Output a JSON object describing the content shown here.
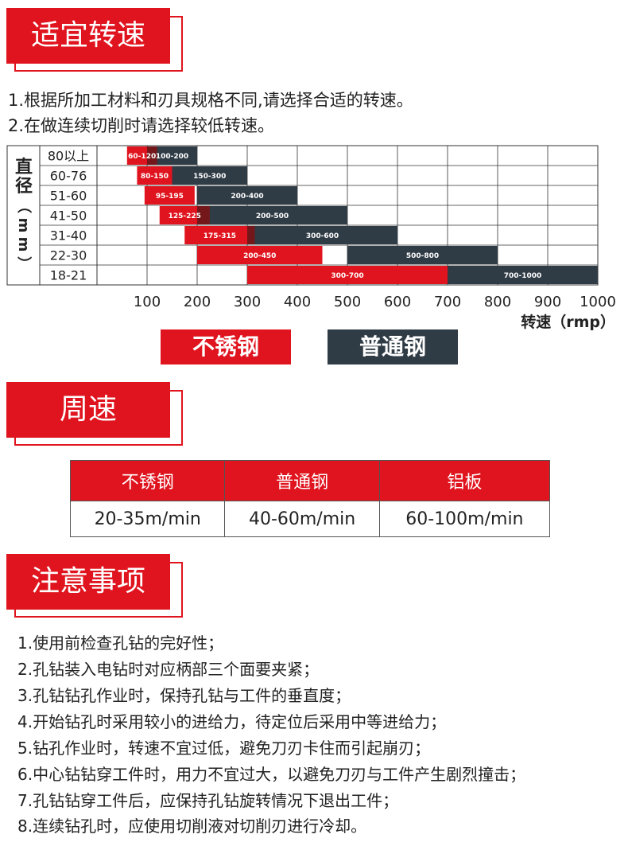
{
  "section1": {
    "title": "适宜转速"
  },
  "intro_notes": [
    "1.根据所加工材料和刃具规格不同,请选择合适的转速。",
    "2.在做连续切削时请选择较低转速。"
  ],
  "chart_data": {
    "type": "range-bar",
    "ylabel": "直径（mm）",
    "xlabel": "转速（rmp）",
    "xticks": [
      100,
      200,
      300,
      400,
      500,
      600,
      700,
      800,
      900,
      1000
    ],
    "xlim": [
      0,
      1000
    ],
    "categories": [
      "80以上",
      "60-76",
      "51-60",
      "41-50",
      "31-40",
      "22-30",
      "18-21"
    ],
    "series": [
      {
        "name": "不锈钢",
        "color": "#e0141e",
        "ranges": [
          [
            60,
            120
          ],
          [
            80,
            150
          ],
          [
            95,
            195
          ],
          [
            125,
            225
          ],
          [
            175,
            315
          ],
          [
            200,
            450
          ],
          [
            300,
            700
          ]
        ],
        "labels": [
          "60-120",
          "80-150",
          "95-195",
          "125-225",
          "175-315",
          "200-450",
          "300-700"
        ]
      },
      {
        "name": "普通钢",
        "color": "#2f3b45",
        "ranges": [
          [
            100,
            200
          ],
          [
            150,
            300
          ],
          [
            200,
            400
          ],
          [
            200,
            500
          ],
          [
            300,
            600
          ],
          [
            500,
            800
          ],
          [
            700,
            1000
          ]
        ],
        "labels": [
          "100-200",
          "150-300",
          "200-400",
          "200-500",
          "300-600",
          "500-800",
          "700-1000"
        ]
      }
    ],
    "grid": true,
    "legend": "bottom"
  },
  "legend": {
    "stainless": "不锈钢",
    "carbon": "普通钢"
  },
  "section2": {
    "title": "周速"
  },
  "speed_table": {
    "headers": [
      "不锈钢",
      "普通钢",
      "铝板"
    ],
    "values": [
      "20-35m/min",
      "40-60m/min",
      "60-100m/min"
    ]
  },
  "section3": {
    "title": "注意事项"
  },
  "cautions": [
    "1.使用前检查孔钻的完好性；",
    "2.孔钻装入电钻时对应柄部三个面要夹紧；",
    "3.孔钻钻孔作业时，保持孔钻与工件的垂直度；",
    "4.开始钻孔时采用较小的进给力，待定位后采用中等进给力；",
    "5.钻孔作业时，转速不宜过低，避免刀刃卡住而引起崩刃；",
    "6.中心钻钻穿工件时，用力不宜过大，以避免刀刃与工件产生剧烈撞击；",
    "7.孔钻钻穿工件后，应保持孔钻旋转情况下退出工件；",
    "8.连续钻孔时，应使用切削液对切削刃进行冷却。"
  ]
}
